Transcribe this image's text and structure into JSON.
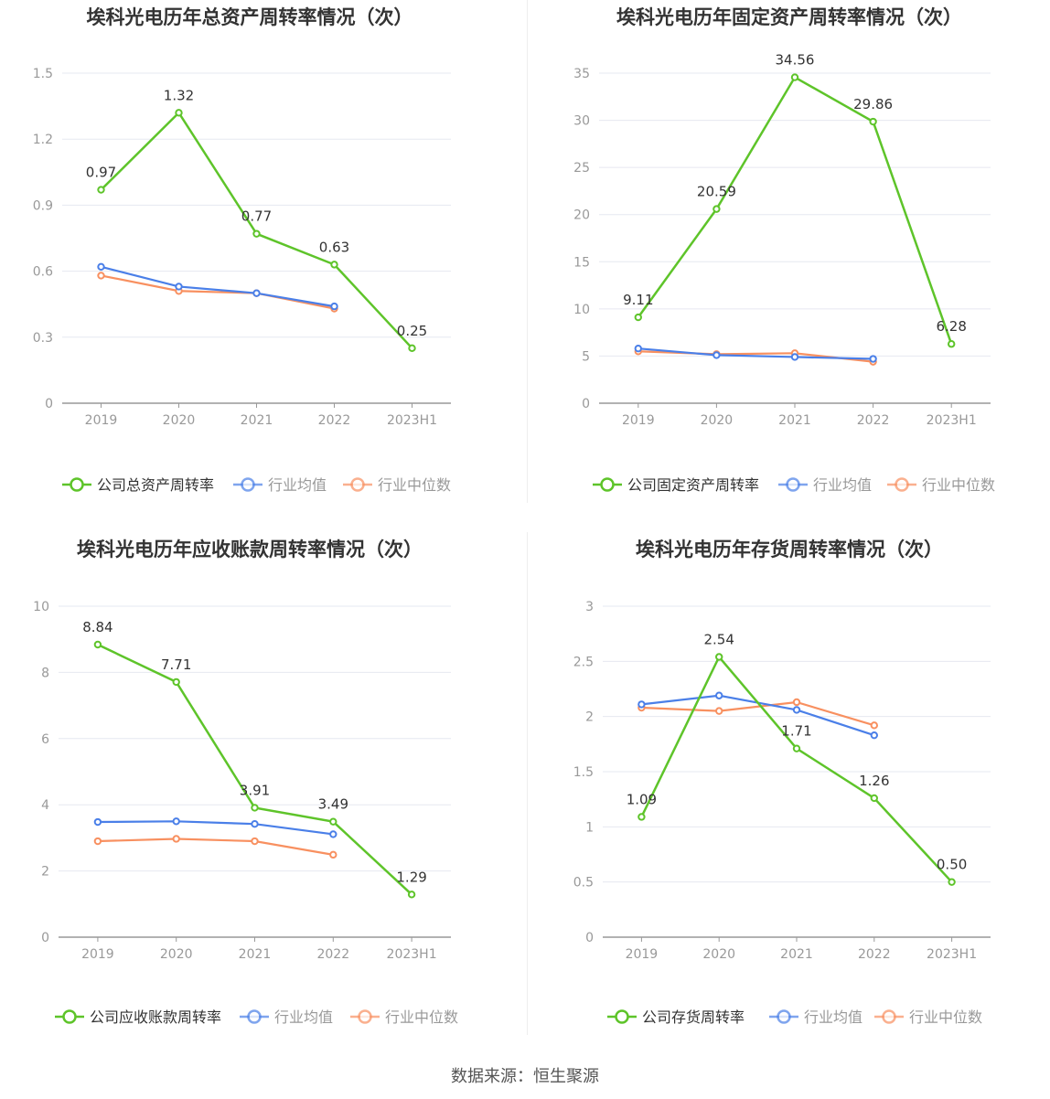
{
  "footer": "数据来源：恒生聚源",
  "colors": {
    "company": "#5ec42a",
    "average": "#4a7fe8",
    "median": "#f89060",
    "grid": "#e6e8f0",
    "axis": "#999999"
  },
  "chart_data": [
    {
      "type": "line",
      "title": "埃科光电历年总资产周转率情况（次）",
      "categories": [
        "2019",
        "2020",
        "2021",
        "2022",
        "2023H1"
      ],
      "ylim": [
        0,
        1.5
      ],
      "yticks": [
        "0",
        "0.3",
        "0.6",
        "0.9",
        "1.2",
        "1.5"
      ],
      "ytick_values": [
        0,
        0.3,
        0.6,
        0.9,
        1.2,
        1.5
      ],
      "legend_position": "bottom",
      "series": [
        {
          "name": "公司总资产周转率",
          "values": [
            0.97,
            1.32,
            0.77,
            0.63,
            0.25
          ],
          "labels": [
            "0.97",
            "1.32",
            "0.77",
            "0.63",
            "0.25"
          ]
        },
        {
          "name": "行业均值",
          "values": [
            0.62,
            0.53,
            0.5,
            0.44,
            null
          ]
        },
        {
          "name": "行业中位数",
          "values": [
            0.58,
            0.51,
            0.5,
            0.43,
            null
          ]
        }
      ]
    },
    {
      "type": "line",
      "title": "埃科光电历年固定资产周转率情况（次）",
      "categories": [
        "2019",
        "2020",
        "2021",
        "2022",
        "2023H1"
      ],
      "ylim": [
        0,
        35
      ],
      "yticks": [
        "0",
        "5",
        "10",
        "15",
        "20",
        "25",
        "30",
        "35"
      ],
      "ytick_values": [
        0,
        5,
        10,
        15,
        20,
        25,
        30,
        35
      ],
      "legend_position": "bottom",
      "series": [
        {
          "name": "公司固定资产周转率",
          "values": [
            9.11,
            20.59,
            34.56,
            29.86,
            6.28
          ],
          "labels": [
            "9.11",
            "20.59",
            "34.56",
            "29.86",
            "6.28"
          ]
        },
        {
          "name": "行业均值",
          "values": [
            5.8,
            5.1,
            4.9,
            4.7,
            null
          ]
        },
        {
          "name": "行业中位数",
          "values": [
            5.5,
            5.2,
            5.3,
            4.4,
            null
          ]
        }
      ]
    },
    {
      "type": "line",
      "title": "埃科光电历年应收账款周转率情况（次）",
      "categories": [
        "2019",
        "2020",
        "2021",
        "2022",
        "2023H1"
      ],
      "ylim": [
        0,
        10
      ],
      "yticks": [
        "0",
        "2",
        "4",
        "6",
        "8",
        "10"
      ],
      "ytick_values": [
        0,
        2,
        4,
        6,
        8,
        10
      ],
      "legend_position": "bottom",
      "series": [
        {
          "name": "公司应收账款周转率",
          "values": [
            8.84,
            7.71,
            3.91,
            3.49,
            1.29
          ],
          "labels": [
            "8.84",
            "7.71",
            "3.91",
            "3.49",
            "1.29"
          ]
        },
        {
          "name": "行业均值",
          "values": [
            3.48,
            3.5,
            3.42,
            3.11,
            null
          ]
        },
        {
          "name": "行业中位数",
          "values": [
            2.9,
            2.97,
            2.9,
            2.49,
            null
          ]
        }
      ]
    },
    {
      "type": "line",
      "title": "埃科光电历年存货周转率情况（次）",
      "categories": [
        "2019",
        "2020",
        "2021",
        "2022",
        "2023H1"
      ],
      "ylim": [
        0,
        3
      ],
      "yticks": [
        "0",
        "0.5",
        "1",
        "1.5",
        "2",
        "2.5",
        "3"
      ],
      "ytick_values": [
        0,
        0.5,
        1,
        1.5,
        2,
        2.5,
        3
      ],
      "legend_position": "bottom",
      "series": [
        {
          "name": "公司存货周转率",
          "values": [
            1.09,
            2.54,
            1.71,
            1.26,
            0.5
          ],
          "labels": [
            "1.09",
            "2.54",
            "1.71",
            "1.26",
            "0.50"
          ]
        },
        {
          "name": "行业均值",
          "values": [
            2.11,
            2.19,
            2.06,
            1.83,
            null
          ]
        },
        {
          "name": "行业中位数",
          "values": [
            2.08,
            2.05,
            2.13,
            1.92,
            null
          ]
        }
      ]
    }
  ]
}
